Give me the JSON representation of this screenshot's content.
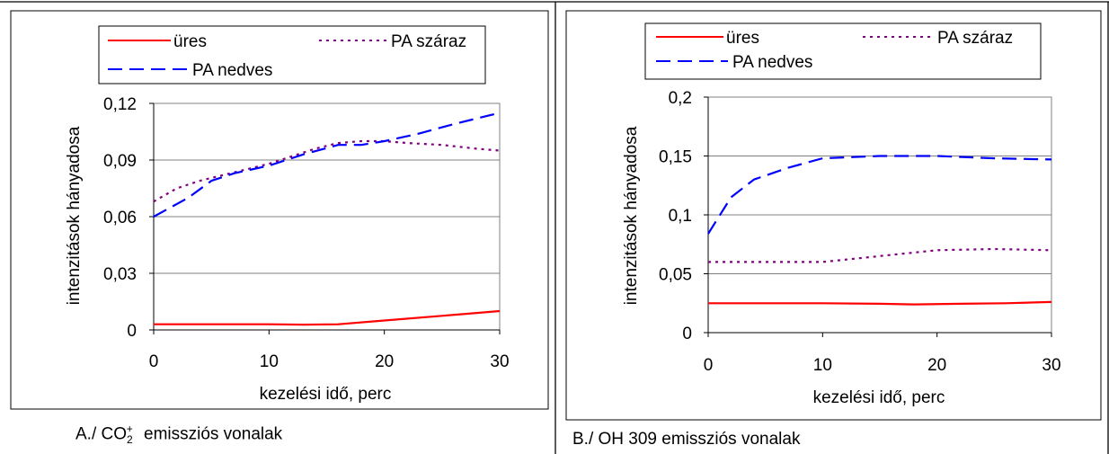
{
  "chart_data": [
    {
      "type": "line",
      "panel_caption": {
        "prefix": "A./ CO",
        "subscript": "2",
        "superscript": "+",
        "suffix": "emissziós vonalak"
      },
      "xlabel": "kezelési idő, perc",
      "ylabel": "intenzitások hányadosa",
      "xlim": [
        0,
        30
      ],
      "ylim": [
        0,
        0.12
      ],
      "xticks": [
        "0",
        "10",
        "20",
        "30"
      ],
      "yticks": [
        "0",
        "0,03",
        "0,06",
        "0,09",
        "0,12"
      ],
      "grid": "horizontal",
      "legend_position": "top",
      "series": [
        {
          "name": "üres",
          "color": "#ff0000",
          "style": "solid",
          "x": [
            0,
            5,
            10,
            13,
            16,
            20,
            25,
            30
          ],
          "y": [
            0.003,
            0.003,
            0.003,
            0.0028,
            0.003,
            0.005,
            0.0075,
            0.01
          ]
        },
        {
          "name": "PA száraz",
          "color": "#800080",
          "style": "dotted",
          "x": [
            0,
            2,
            4,
            6,
            8,
            10,
            12,
            14,
            16,
            18,
            20,
            22,
            25,
            28,
            30
          ],
          "y": [
            0.068,
            0.075,
            0.079,
            0.082,
            0.085,
            0.088,
            0.092,
            0.096,
            0.099,
            0.1,
            0.1,
            0.099,
            0.098,
            0.096,
            0.095
          ]
        },
        {
          "name": "PA nedves",
          "color": "#0000ff",
          "style": "dashed",
          "x": [
            0,
            3,
            5,
            7,
            10,
            13,
            16,
            18,
            20,
            23,
            26,
            30
          ],
          "y": [
            0.06,
            0.07,
            0.079,
            0.083,
            0.087,
            0.093,
            0.098,
            0.098,
            0.1,
            0.104,
            0.109,
            0.115
          ]
        }
      ]
    },
    {
      "type": "line",
      "panel_caption": {
        "text": "B./ OH 309 emissziós vonalak"
      },
      "xlabel": "kezelési idő, perc",
      "ylabel": "intenzitások hányadosa",
      "xlim": [
        0,
        30
      ],
      "ylim": [
        0,
        0.2
      ],
      "xticks": [
        "0",
        "10",
        "20",
        "30"
      ],
      "yticks": [
        "0",
        "0,05",
        "0,1",
        "0,15",
        "0,2"
      ],
      "grid": "horizontal",
      "legend_position": "top",
      "series": [
        {
          "name": "üres",
          "color": "#ff0000",
          "style": "solid",
          "x": [
            0,
            5,
            10,
            15,
            18,
            22,
            26,
            30
          ],
          "y": [
            0.025,
            0.025,
            0.025,
            0.0245,
            0.024,
            0.0245,
            0.025,
            0.026
          ]
        },
        {
          "name": "PA száraz",
          "color": "#800080",
          "style": "dotted",
          "x": [
            0,
            5,
            10,
            13,
            16,
            20,
            25,
            30
          ],
          "y": [
            0.06,
            0.06,
            0.06,
            0.063,
            0.066,
            0.07,
            0.071,
            0.07
          ]
        },
        {
          "name": "PA nedves",
          "color": "#0000ff",
          "style": "dashed",
          "x": [
            0,
            2,
            4,
            7,
            10,
            15,
            20,
            25,
            30
          ],
          "y": [
            0.084,
            0.115,
            0.13,
            0.14,
            0.148,
            0.15,
            0.15,
            0.148,
            0.147
          ]
        }
      ]
    }
  ]
}
